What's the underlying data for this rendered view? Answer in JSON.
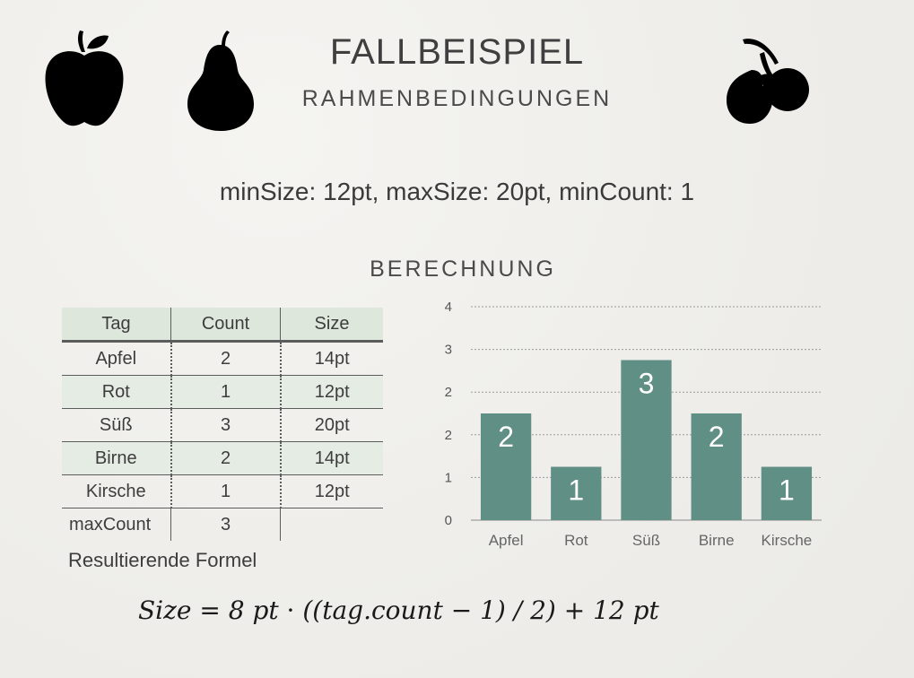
{
  "header": {
    "title": "FALLBEISPIEL",
    "subtitle": "RAHMENBEDINGUNGEN"
  },
  "icons": [
    "apple-icon",
    "pear-icon",
    "cherry-icon"
  ],
  "parameters_text": "minSize: 12pt, maxSize: 20pt, minCount: 1",
  "section_title": "BERECHNUNG",
  "table": {
    "headers": [
      "Tag",
      "Count",
      "Size"
    ],
    "rows": [
      [
        "Apfel",
        "2",
        "14pt"
      ],
      [
        "Rot",
        "1",
        "12pt"
      ],
      [
        "Süß",
        "3",
        "20pt"
      ],
      [
        "Birne",
        "2",
        "14pt"
      ],
      [
        "Kirsche",
        "1",
        "12pt"
      ]
    ],
    "footer": [
      "maxCount",
      "3",
      ""
    ]
  },
  "formula_label": "Resultierende Formel",
  "formula": {
    "lhs": "Size",
    "eq": "=",
    "term1": "8 pt",
    "dot": "·",
    "paren": "((tag.count − 1) / 2)",
    "plus": "+",
    "term2": "12 pt"
  },
  "colors": {
    "bar": "#5f8f85",
    "table_header_bg": "#dde7dc",
    "table_stripe_bg": "#e5ece4"
  },
  "chart_data": {
    "type": "bar",
    "categories": [
      "Apfel",
      "Rot",
      "Süß",
      "Birne",
      "Kirsche"
    ],
    "values": [
      2,
      1,
      3,
      2,
      1
    ],
    "data_labels": [
      "2",
      "1",
      "3",
      "2",
      "1"
    ],
    "ytick_labels": [
      "0",
      "1",
      "2",
      "2",
      "3",
      "4"
    ],
    "ylim": [
      0,
      4
    ],
    "grid": true,
    "title": "",
    "xlabel": "",
    "ylabel": ""
  }
}
